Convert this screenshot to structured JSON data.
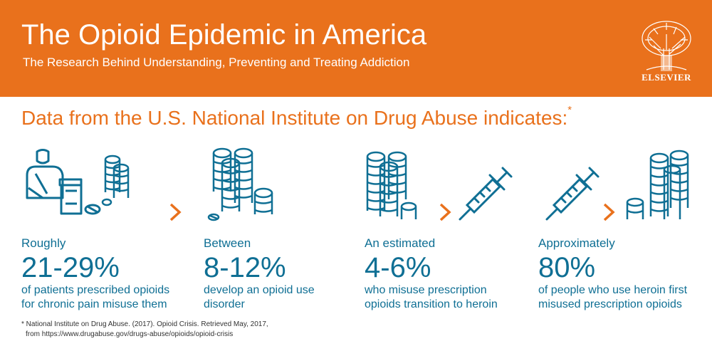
{
  "header": {
    "title": "The Opioid Epidemic in America",
    "subtitle": "The Research Behind Understanding, Preventing and Treating Addiction",
    "logo_text": "ELSEVIER"
  },
  "headline": {
    "text": "Data from the U.S. National Institute on Drug Abuse indicates:",
    "marker": "*"
  },
  "stats": [
    {
      "lead": "Roughly",
      "value": "21-29%",
      "desc_line1": "of patients prescribed opioids",
      "desc_line2": "for chronic pain misuse them"
    },
    {
      "lead": "Between",
      "value": "8-12%",
      "desc_line1": "develop an opioid use",
      "desc_line2": "disorder"
    },
    {
      "lead": "An estimated",
      "value": "4-6%",
      "desc_line1": "who misuse prescription",
      "desc_line2": "opioids transition to heroin"
    },
    {
      "lead": "Approximately",
      "value": "80%",
      "desc_line1": "of people who use heroin first",
      "desc_line2": "misused prescription opioids"
    }
  ],
  "footnote": {
    "line1": "* National Institute on Drug Abuse. (2017). Opioid Crisis. Retrieved May, 2017,",
    "line2": "from https://www.drugabuse.gov/drugs-abuse/opioids/opioid-crisis"
  },
  "colors": {
    "orange": "#e9711c",
    "teal": "#0f6f94",
    "white": "#ffffff"
  },
  "icons": [
    "patient-with-pill-bottle-icon",
    "pill-stacks-icon",
    "syringe-icon",
    "chevron-right-icon",
    "elsevier-tree-logo"
  ]
}
